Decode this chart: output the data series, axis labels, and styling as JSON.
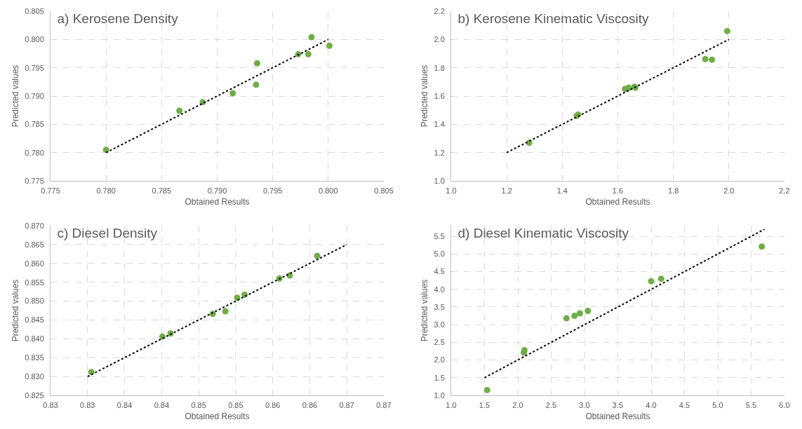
{
  "chart_data": [
    {
      "type": "scatter",
      "title": "a) Kerosene Density",
      "xlabel": "Obtained Results",
      "ylabel": "Predicted values",
      "grid": true,
      "xlim": [
        0.775,
        0.805
      ],
      "ylim": [
        0.775,
        0.805
      ],
      "xticks": [
        {
          "value": 0.775,
          "label": "0.775"
        },
        {
          "value": 0.78,
          "label": "0.780"
        },
        {
          "value": 0.785,
          "label": "0.785"
        },
        {
          "value": 0.79,
          "label": "0.790"
        },
        {
          "value": 0.795,
          "label": "0.795"
        },
        {
          "value": 0.8,
          "label": "0.800"
        },
        {
          "value": 0.805,
          "label": "0.805"
        }
      ],
      "yticks": [
        {
          "value": 0.775,
          "label": "0.775"
        },
        {
          "value": 0.78,
          "label": "0.780"
        },
        {
          "value": 0.785,
          "label": "0.785"
        },
        {
          "value": 0.79,
          "label": "0.790"
        },
        {
          "value": 0.795,
          "label": "0.795"
        },
        {
          "value": 0.8,
          "label": "0.800"
        },
        {
          "value": 0.805,
          "label": "0.805"
        }
      ],
      "series": [
        {
          "marker": "circle",
          "color": "#70ad47",
          "x": [
            0.78,
            0.7866,
            0.7887,
            0.7914,
            0.7936,
            0.7935,
            0.7973,
            0.7982,
            0.7985,
            0.8001
          ],
          "values": [
            0.7805,
            0.7874,
            0.7889,
            0.7905,
            0.7958,
            0.792,
            0.7974,
            0.7974,
            0.8004,
            0.7989
          ]
        },
        {
          "type": "line",
          "marker": "none",
          "line_style": "dotted",
          "color": "#000000",
          "x": [
            0.78,
            0.8
          ],
          "values": [
            0.78,
            0.8
          ]
        }
      ]
    },
    {
      "type": "scatter",
      "title": "b) Kerosene Kinematic Viscosity",
      "xlabel": "Obtained Results",
      "ylabel": "Predicted values",
      "grid": true,
      "xlim": [
        1.0,
        2.2
      ],
      "ylim": [
        1.0,
        2.2
      ],
      "xticks": [
        {
          "value": 1,
          "label": "1.0"
        },
        1.2,
        1.4,
        1.6,
        1.8,
        {
          "value": 2,
          "label": "2.0"
        },
        2.2
      ],
      "yticks": [
        {
          "value": 1,
          "label": "1.0"
        },
        1.2,
        1.4,
        1.6,
        1.8,
        {
          "value": 2,
          "label": "2.0"
        },
        2.2
      ],
      "series": [
        {
          "marker": "circle",
          "color": "#70ad47",
          "x": [
            1.281,
            1.452,
            1.457,
            1.626,
            1.639,
            1.66,
            1.663,
            1.915,
            1.939,
            1.994
          ],
          "values": [
            1.269,
            1.46,
            1.468,
            1.651,
            1.659,
            1.666,
            1.659,
            1.861,
            1.857,
            2.059
          ]
        },
        {
          "type": "line",
          "marker": "none",
          "line_style": "dotted",
          "color": "#000000",
          "x": [
            1.2,
            2.0
          ],
          "values": [
            1.2,
            2.0
          ]
        }
      ]
    },
    {
      "type": "scatter",
      "title": "c) Diesel Density",
      "xlabel": "Obtained Results",
      "ylabel": "Predicted values",
      "grid": true,
      "xlim": [
        0.825,
        0.87
      ],
      "ylim": [
        0.825,
        0.87
      ],
      "xticks": [
        {
          "value": 0.825,
          "label": "0.83"
        },
        {
          "value": 0.83,
          "label": "0.83"
        },
        {
          "value": 0.835,
          "label": "0.84"
        },
        {
          "value": 0.84,
          "label": "0.84"
        },
        {
          "value": 0.845,
          "label": "0.85"
        },
        {
          "value": 0.85,
          "label": "0.85"
        },
        {
          "value": 0.855,
          "label": "0.86"
        },
        {
          "value": 0.86,
          "label": "0.86"
        },
        {
          "value": 0.865,
          "label": "0.87"
        },
        {
          "value": 0.87,
          "label": "0.87"
        }
      ],
      "yticks": [
        {
          "value": 0.825,
          "label": "0.825"
        },
        {
          "value": 0.83,
          "label": "0.830"
        },
        {
          "value": 0.835,
          "label": "0.835"
        },
        {
          "value": 0.84,
          "label": "0.840"
        },
        {
          "value": 0.845,
          "label": "0.845"
        },
        {
          "value": 0.85,
          "label": "0.850"
        },
        {
          "value": 0.855,
          "label": "0.855"
        },
        {
          "value": 0.86,
          "label": "0.860"
        },
        {
          "value": 0.865,
          "label": "0.865"
        },
        {
          "value": 0.87,
          "label": "0.870"
        }
      ],
      "series": [
        {
          "marker": "circle",
          "color": "#70ad47",
          "x": [
            0.8305,
            0.8401,
            0.8412,
            0.8469,
            0.8486,
            0.8502,
            0.8512,
            0.8559,
            0.8573,
            0.861
          ],
          "values": [
            0.8312,
            0.8406,
            0.8414,
            0.8466,
            0.8473,
            0.8509,
            0.8517,
            0.856,
            0.8568,
            0.862
          ]
        },
        {
          "type": "line",
          "marker": "none",
          "line_style": "dotted",
          "color": "#000000",
          "x": [
            0.83,
            0.865
          ],
          "values": [
            0.83,
            0.865
          ]
        }
      ]
    },
    {
      "type": "scatter",
      "title": "d) Diesel Kinematic Viscosity",
      "xlabel": "Obtained Results",
      "ylabel": "Predicted values",
      "grid": true,
      "xlim": [
        1.0,
        6.0
      ],
      "ylim": [
        1.0,
        5.8
      ],
      "xticks": [
        {
          "value": 1,
          "label": "1.0"
        },
        1.5,
        {
          "value": 2,
          "label": "2.0"
        },
        2.5,
        {
          "value": 3,
          "label": "3.0"
        },
        3.5,
        {
          "value": 4,
          "label": "4.0"
        },
        4.5,
        {
          "value": 5,
          "label": "5.0"
        },
        5.5,
        {
          "value": 6,
          "label": "6.0"
        }
      ],
      "yticks": [
        {
          "value": 1,
          "label": "1.0"
        },
        1.5,
        {
          "value": 2,
          "label": "2.0"
        },
        2.5,
        {
          "value": 3,
          "label": "3.0"
        },
        3.5,
        {
          "value": 4,
          "label": "4.0"
        },
        4.5,
        {
          "value": 5,
          "label": "5.0"
        },
        5.5
      ],
      "series": [
        {
          "marker": "circle",
          "color": "#70ad47",
          "x": [
            1.54,
            2.09,
            2.1,
            2.73,
            2.85,
            2.93,
            3.05,
            4.0,
            4.15,
            5.66
          ],
          "values": [
            1.15,
            2.21,
            2.28,
            3.18,
            3.25,
            3.32,
            3.39,
            4.23,
            4.3,
            5.21
          ]
        },
        {
          "type": "line",
          "marker": "none",
          "line_style": "dotted",
          "color": "#000000",
          "x": [
            1.5,
            5.7
          ],
          "values": [
            1.5,
            5.7
          ]
        }
      ]
    }
  ]
}
